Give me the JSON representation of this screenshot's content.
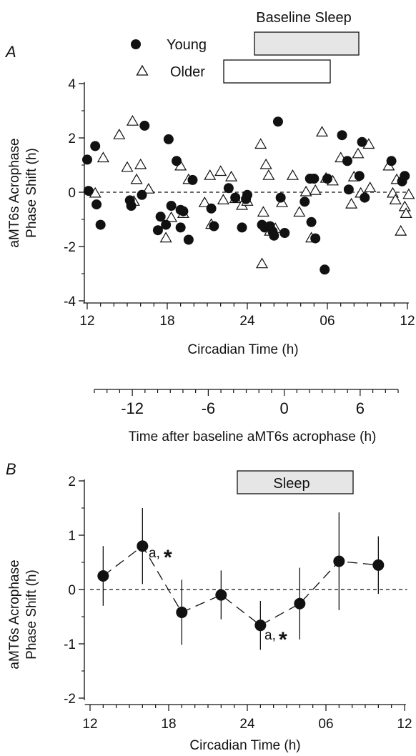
{
  "figure": {
    "panel_a": {
      "letter": "A",
      "sleep_bar_label": "Baseline Sleep",
      "legend": [
        {
          "label": "Young",
          "marker": "filled-circle"
        },
        {
          "label": "Older",
          "marker": "open-triangle"
        }
      ],
      "ylabel_line1": "aMT6s Acrophase",
      "ylabel_line2": "Phase Shift (h)",
      "xlabel": "Circadian Time (h)",
      "y_ticks": [
        "4",
        "2",
        "0",
        "-2",
        "-4"
      ],
      "x_ticks": [
        "12",
        "18",
        "24",
        "06",
        "12"
      ],
      "relative_axis": {
        "label": "Time after baseline aMT6s acrophase (h)",
        "ticks": [
          "-12",
          "-6",
          "0",
          "6"
        ]
      }
    },
    "panel_b": {
      "letter": "B",
      "sleep_bar_label": "Sleep",
      "ylabel_line1": "aMT6s Acrophase",
      "ylabel_line2": "Phase Shift (h)",
      "xlabel": "Circadian Time (h)",
      "y_ticks": [
        "2",
        "1",
        "0",
        "-1",
        "-2"
      ],
      "x_ticks": [
        "12",
        "18",
        "24",
        "06",
        "12"
      ],
      "annotation_a": "a,",
      "annotation_star": "*"
    }
  },
  "chart_data": [
    {
      "type": "scatter",
      "panel": "A",
      "xlabel": "Circadian Time (h)",
      "ylabel": "aMT6s Acrophase Phase Shift (h)",
      "x_unit": "circadian hours (12 → 36, ticks labelled 12, 18, 24, 06, 12)",
      "xlim": [
        11.5,
        36.2
      ],
      "ylim": [
        -4,
        4
      ],
      "zero_line": "dashed",
      "young_bar": {
        "label": "Young",
        "sleep_start": 24.5,
        "sleep_end": 32.5
      },
      "older_bar": {
        "label": "Older",
        "sleep_start": 22.2,
        "sleep_end": 30.7
      },
      "series": [
        {
          "name": "Young",
          "marker": "filled-circle",
          "points": [
            [
              12.0,
              1.2
            ],
            [
              12.1,
              0.05
            ],
            [
              12.6,
              1.7
            ],
            [
              12.7,
              -0.45
            ],
            [
              13.0,
              -1.2
            ],
            [
              15.2,
              -0.3
            ],
            [
              15.3,
              -0.5
            ],
            [
              16.1,
              -0.1
            ],
            [
              16.3,
              2.45
            ],
            [
              17.3,
              -1.4
            ],
            [
              17.5,
              -0.9
            ],
            [
              17.9,
              -1.2
            ],
            [
              18.1,
              1.95
            ],
            [
              18.3,
              -0.5
            ],
            [
              18.7,
              1.15
            ],
            [
              19.0,
              -0.65
            ],
            [
              19.0,
              -1.3
            ],
            [
              19.2,
              -0.7
            ],
            [
              19.6,
              -1.75
            ],
            [
              19.9,
              0.45
            ],
            [
              21.3,
              -0.6
            ],
            [
              21.5,
              -1.25
            ],
            [
              22.6,
              0.15
            ],
            [
              23.1,
              -0.2
            ],
            [
              23.6,
              -1.3
            ],
            [
              23.9,
              -0.25
            ],
            [
              24.0,
              -0.1
            ],
            [
              25.1,
              -1.2
            ],
            [
              25.3,
              -1.3
            ],
            [
              25.7,
              -1.25
            ],
            [
              25.9,
              -1.45
            ],
            [
              26.0,
              -1.6
            ],
            [
              26.3,
              2.6
            ],
            [
              26.5,
              -0.2
            ],
            [
              26.8,
              -1.5
            ],
            [
              28.3,
              -0.35
            ],
            [
              28.7,
              0.5
            ],
            [
              28.8,
              -1.1
            ],
            [
              29.0,
              0.5
            ],
            [
              29.1,
              -1.7
            ],
            [
              29.8,
              -2.85
            ],
            [
              30.0,
              0.5
            ],
            [
              31.1,
              2.1
            ],
            [
              31.5,
              1.15
            ],
            [
              31.6,
              0.1
            ],
            [
              32.4,
              0.6
            ],
            [
              32.6,
              1.85
            ],
            [
              32.8,
              -0.2
            ],
            [
              34.8,
              1.15
            ],
            [
              35.6,
              0.4
            ],
            [
              35.8,
              0.6
            ]
          ]
        },
        {
          "name": "Older",
          "marker": "open-triangle",
          "points": [
            [
              12.6,
              -0.05
            ],
            [
              13.2,
              1.25
            ],
            [
              14.4,
              2.1
            ],
            [
              15.0,
              0.9
            ],
            [
              15.4,
              2.6
            ],
            [
              15.5,
              -0.35
            ],
            [
              15.7,
              0.45
            ],
            [
              16.0,
              1.0
            ],
            [
              16.6,
              0.1
            ],
            [
              17.9,
              -1.7
            ],
            [
              18.3,
              -0.95
            ],
            [
              19.0,
              0.95
            ],
            [
              19.2,
              -0.8
            ],
            [
              19.6,
              0.45
            ],
            [
              20.8,
              -0.4
            ],
            [
              21.2,
              0.6
            ],
            [
              21.3,
              -1.2
            ],
            [
              22.0,
              0.75
            ],
            [
              22.2,
              -0.3
            ],
            [
              22.8,
              0.55
            ],
            [
              23.1,
              -0.25
            ],
            [
              23.6,
              -0.5
            ],
            [
              24.0,
              -0.35
            ],
            [
              25.0,
              1.75
            ],
            [
              25.1,
              -2.65
            ],
            [
              25.2,
              -0.75
            ],
            [
              25.4,
              1.0
            ],
            [
              25.6,
              0.6
            ],
            [
              25.7,
              -1.45
            ],
            [
              26.1,
              -1.35
            ],
            [
              26.6,
              -0.4
            ],
            [
              27.4,
              0.6
            ],
            [
              27.9,
              -0.75
            ],
            [
              28.4,
              0.0
            ],
            [
              28.8,
              -1.7
            ],
            [
              29.1,
              0.05
            ],
            [
              29.6,
              2.2
            ],
            [
              29.9,
              0.5
            ],
            [
              30.4,
              0.4
            ],
            [
              31.0,
              1.25
            ],
            [
              31.8,
              -0.45
            ],
            [
              32.0,
              0.55
            ],
            [
              32.3,
              1.4
            ],
            [
              32.5,
              -0.05
            ],
            [
              33.1,
              1.75
            ],
            [
              33.2,
              0.15
            ],
            [
              34.6,
              0.95
            ],
            [
              34.9,
              -0.05
            ],
            [
              35.1,
              -0.3
            ],
            [
              35.2,
              0.45
            ],
            [
              35.5,
              -1.45
            ],
            [
              35.8,
              -0.55
            ],
            [
              35.9,
              -0.8
            ],
            [
              36.1,
              -0.1
            ]
          ]
        }
      ],
      "relative_axis": {
        "label": "Time after baseline aMT6s acrophase (h)",
        "range": [
          -15,
          9
        ],
        "ticks": [
          -12,
          -6,
          0,
          6
        ]
      }
    },
    {
      "type": "scatter",
      "panel": "B",
      "xlabel": "Circadian Time (h)",
      "ylabel": "aMT6s Acrophase Phase Shift (h)",
      "x_unit": "circadian hours (12 → 36, ticks labelled 12, 18, 24, 06, 12)",
      "xlim": [
        11.4,
        36.2
      ],
      "ylim": [
        -2,
        2
      ],
      "zero_line": "dashed",
      "sleep_bar": {
        "label": "Sleep",
        "start": 23.3,
        "end": 31.5
      },
      "series": [
        {
          "name": "",
          "marker": "filled-circle-with-error-bars",
          "points": [
            {
              "x": 13,
              "y": 0.25,
              "err": 0.55
            },
            {
              "x": 16,
              "y": 0.8,
              "err": 0.7,
              "annotation": "a,*"
            },
            {
              "x": 19,
              "y": -0.42,
              "err": 0.6
            },
            {
              "x": 22,
              "y": -0.1,
              "err": 0.45
            },
            {
              "x": 25,
              "y": -0.66,
              "err": 0.45,
              "annotation": "a,*"
            },
            {
              "x": 28,
              "y": -0.26,
              "err": 0.66
            },
            {
              "x": 31,
              "y": 0.52,
              "err": 0.9
            },
            {
              "x": 34,
              "y": 0.45,
              "err": 0.53
            }
          ]
        }
      ]
    }
  ]
}
